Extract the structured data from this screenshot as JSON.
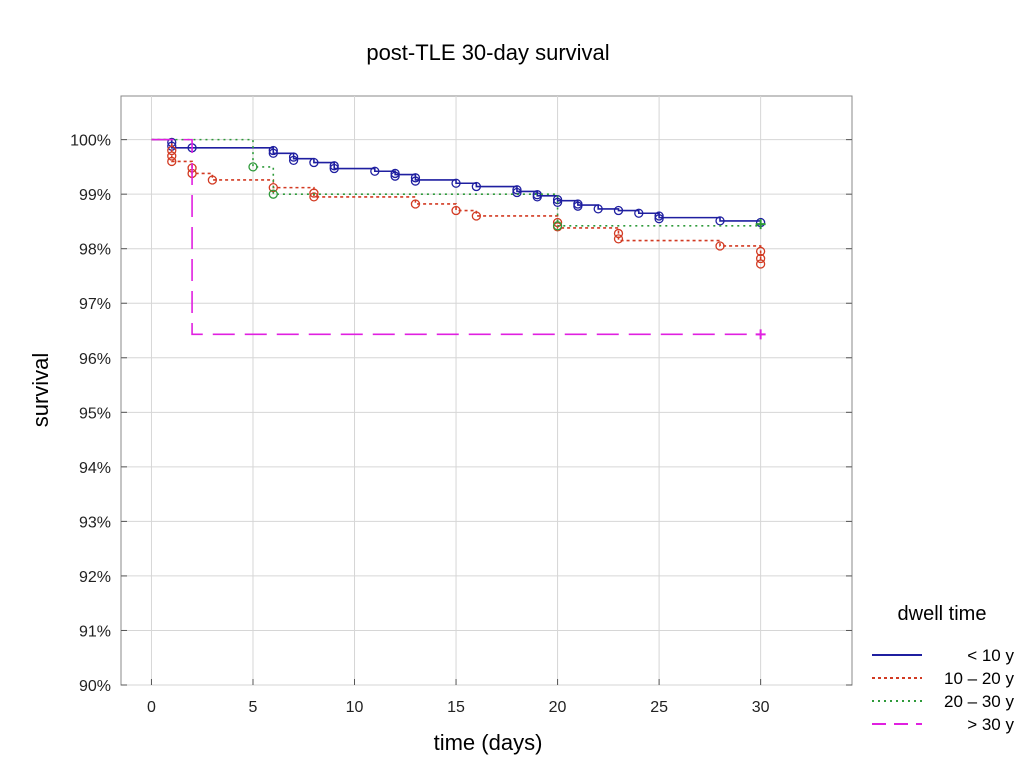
{
  "chart_data": {
    "type": "line",
    "title": "post-TLE 30-day survival",
    "xlabel": "time (days)",
    "ylabel": "survival",
    "xlim": [
      -1.5,
      34.5
    ],
    "ylim": [
      90,
      100.8
    ],
    "x_ticks": [
      0,
      5,
      10,
      15,
      20,
      25,
      30
    ],
    "y_ticks": [
      90,
      91,
      92,
      93,
      94,
      95,
      96,
      97,
      98,
      99,
      100
    ],
    "y_tick_labels": [
      "90%",
      "91%",
      "92%",
      "93%",
      "94%",
      "95%",
      "96%",
      "97%",
      "98%",
      "99%",
      "100%"
    ],
    "grid": true,
    "legend": {
      "title": "dwell time",
      "position": "bottom-right, outside plot"
    },
    "series": [
      {
        "name": "< 10 y",
        "color": "#1f1fa0",
        "dash": "solid",
        "steps": [
          [
            0,
            100
          ],
          [
            1,
            99.85
          ],
          [
            6,
            99.75
          ],
          [
            7,
            99.65
          ],
          [
            8,
            99.58
          ],
          [
            9,
            99.47
          ],
          [
            11,
            99.42
          ],
          [
            12,
            99.36
          ],
          [
            13,
            99.26
          ],
          [
            15,
            99.2
          ],
          [
            16,
            99.14
          ],
          [
            18,
            99.05
          ],
          [
            19,
            98.97
          ],
          [
            20,
            98.88
          ],
          [
            21,
            98.8
          ],
          [
            22,
            98.73
          ],
          [
            23,
            98.7
          ],
          [
            24,
            98.65
          ],
          [
            25,
            98.57
          ],
          [
            28,
            98.51
          ],
          [
            30,
            98.48
          ]
        ],
        "censored": [
          [
            1,
            99.95
          ],
          [
            1,
            99.88
          ],
          [
            2,
            99.85
          ],
          [
            6,
            99.8
          ],
          [
            6,
            99.75
          ],
          [
            7,
            99.68
          ],
          [
            7,
            99.62
          ],
          [
            8,
            99.58
          ],
          [
            9,
            99.52
          ],
          [
            9,
            99.47
          ],
          [
            11,
            99.42
          ],
          [
            12,
            99.38
          ],
          [
            12,
            99.33
          ],
          [
            13,
            99.3
          ],
          [
            13,
            99.24
          ],
          [
            15,
            99.2
          ],
          [
            16,
            99.14
          ],
          [
            18,
            99.08
          ],
          [
            18,
            99.03
          ],
          [
            19,
            98.99
          ],
          [
            19,
            98.95
          ],
          [
            20,
            98.9
          ],
          [
            20,
            98.85
          ],
          [
            21,
            98.82
          ],
          [
            21,
            98.78
          ],
          [
            22,
            98.73
          ],
          [
            23,
            98.7
          ],
          [
            24,
            98.65
          ],
          [
            25,
            98.6
          ],
          [
            25,
            98.55
          ],
          [
            28,
            98.51
          ],
          [
            30,
            98.48
          ]
        ]
      },
      {
        "name": "10 – 20 y",
        "color": "#d23a22",
        "dash": "3,3",
        "steps": [
          [
            0,
            100
          ],
          [
            1,
            99.6
          ],
          [
            2,
            99.38
          ],
          [
            3,
            99.26
          ],
          [
            6,
            99.12
          ],
          [
            8,
            98.95
          ],
          [
            13,
            98.82
          ],
          [
            15,
            98.7
          ],
          [
            16,
            98.6
          ],
          [
            20,
            98.38
          ],
          [
            23,
            98.15
          ],
          [
            28,
            98.05
          ],
          [
            30,
            97.75
          ]
        ],
        "censored": [
          [
            1,
            99.8
          ],
          [
            1,
            99.7
          ],
          [
            1,
            99.6
          ],
          [
            2,
            99.48
          ],
          [
            2,
            99.38
          ],
          [
            3,
            99.26
          ],
          [
            6,
            99.12
          ],
          [
            8,
            99.02
          ],
          [
            8,
            98.95
          ],
          [
            13,
            98.82
          ],
          [
            15,
            98.7
          ],
          [
            16,
            98.6
          ],
          [
            20,
            98.48
          ],
          [
            20,
            98.4
          ],
          [
            23,
            98.28
          ],
          [
            23,
            98.18
          ],
          [
            28,
            98.05
          ],
          [
            30,
            97.95
          ],
          [
            30,
            97.82
          ],
          [
            30,
            97.72
          ]
        ]
      },
      {
        "name": "20 – 30 y",
        "color": "#2e9a3a",
        "dash": "2,4",
        "steps": [
          [
            0,
            100
          ],
          [
            5,
            99.5
          ],
          [
            6,
            99.0
          ],
          [
            20,
            98.42
          ],
          [
            30,
            98.45
          ]
        ],
        "censored": [
          [
            5,
            99.5
          ],
          [
            6,
            99.0
          ],
          [
            20,
            98.42
          ],
          [
            30,
            98.45
          ]
        ]
      },
      {
        "name": "> 30 y",
        "color": "#e020e0",
        "dash": "22,10",
        "steps": [
          [
            0,
            100
          ],
          [
            2,
            96.43
          ],
          [
            30,
            96.43
          ]
        ],
        "censored": [
          [
            30,
            96.43
          ]
        ]
      }
    ]
  }
}
